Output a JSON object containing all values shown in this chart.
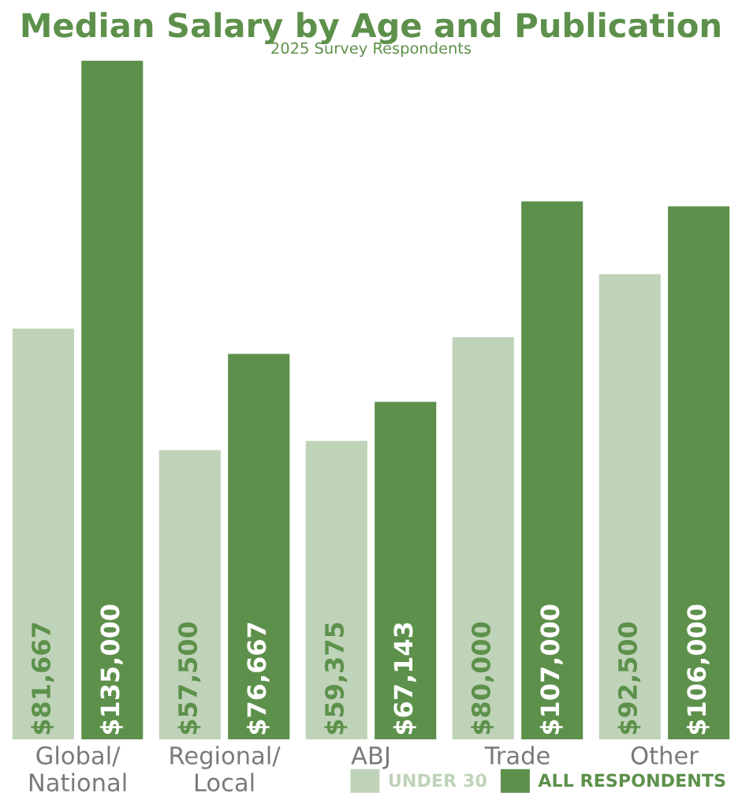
{
  "chart_data": {
    "type": "bar",
    "title": "Median Salary by Age and Publication",
    "subtitle": "2025 Survey Respondents",
    "categories": [
      "Global/\nNational",
      "Regional/\nLocal",
      "ABJ",
      "Trade",
      "Other"
    ],
    "series": [
      {
        "name": "UNDER 30",
        "color": "#bfd3b9",
        "values": [
          81667,
          57500,
          59375,
          80000,
          92500
        ],
        "value_labels": [
          "$81,667",
          "$57,500",
          "$59,375",
          "$80,000",
          "$92,500"
        ]
      },
      {
        "name": "ALL RESPONDENTS",
        "color": "#5d914b",
        "values": [
          135000,
          76667,
          67143,
          107000,
          106000
        ],
        "value_labels": [
          "$135,000",
          "$76,667",
          "$67,143",
          "$107,000",
          "$106,000"
        ]
      }
    ],
    "legend": "bottom right",
    "grid": false
  }
}
